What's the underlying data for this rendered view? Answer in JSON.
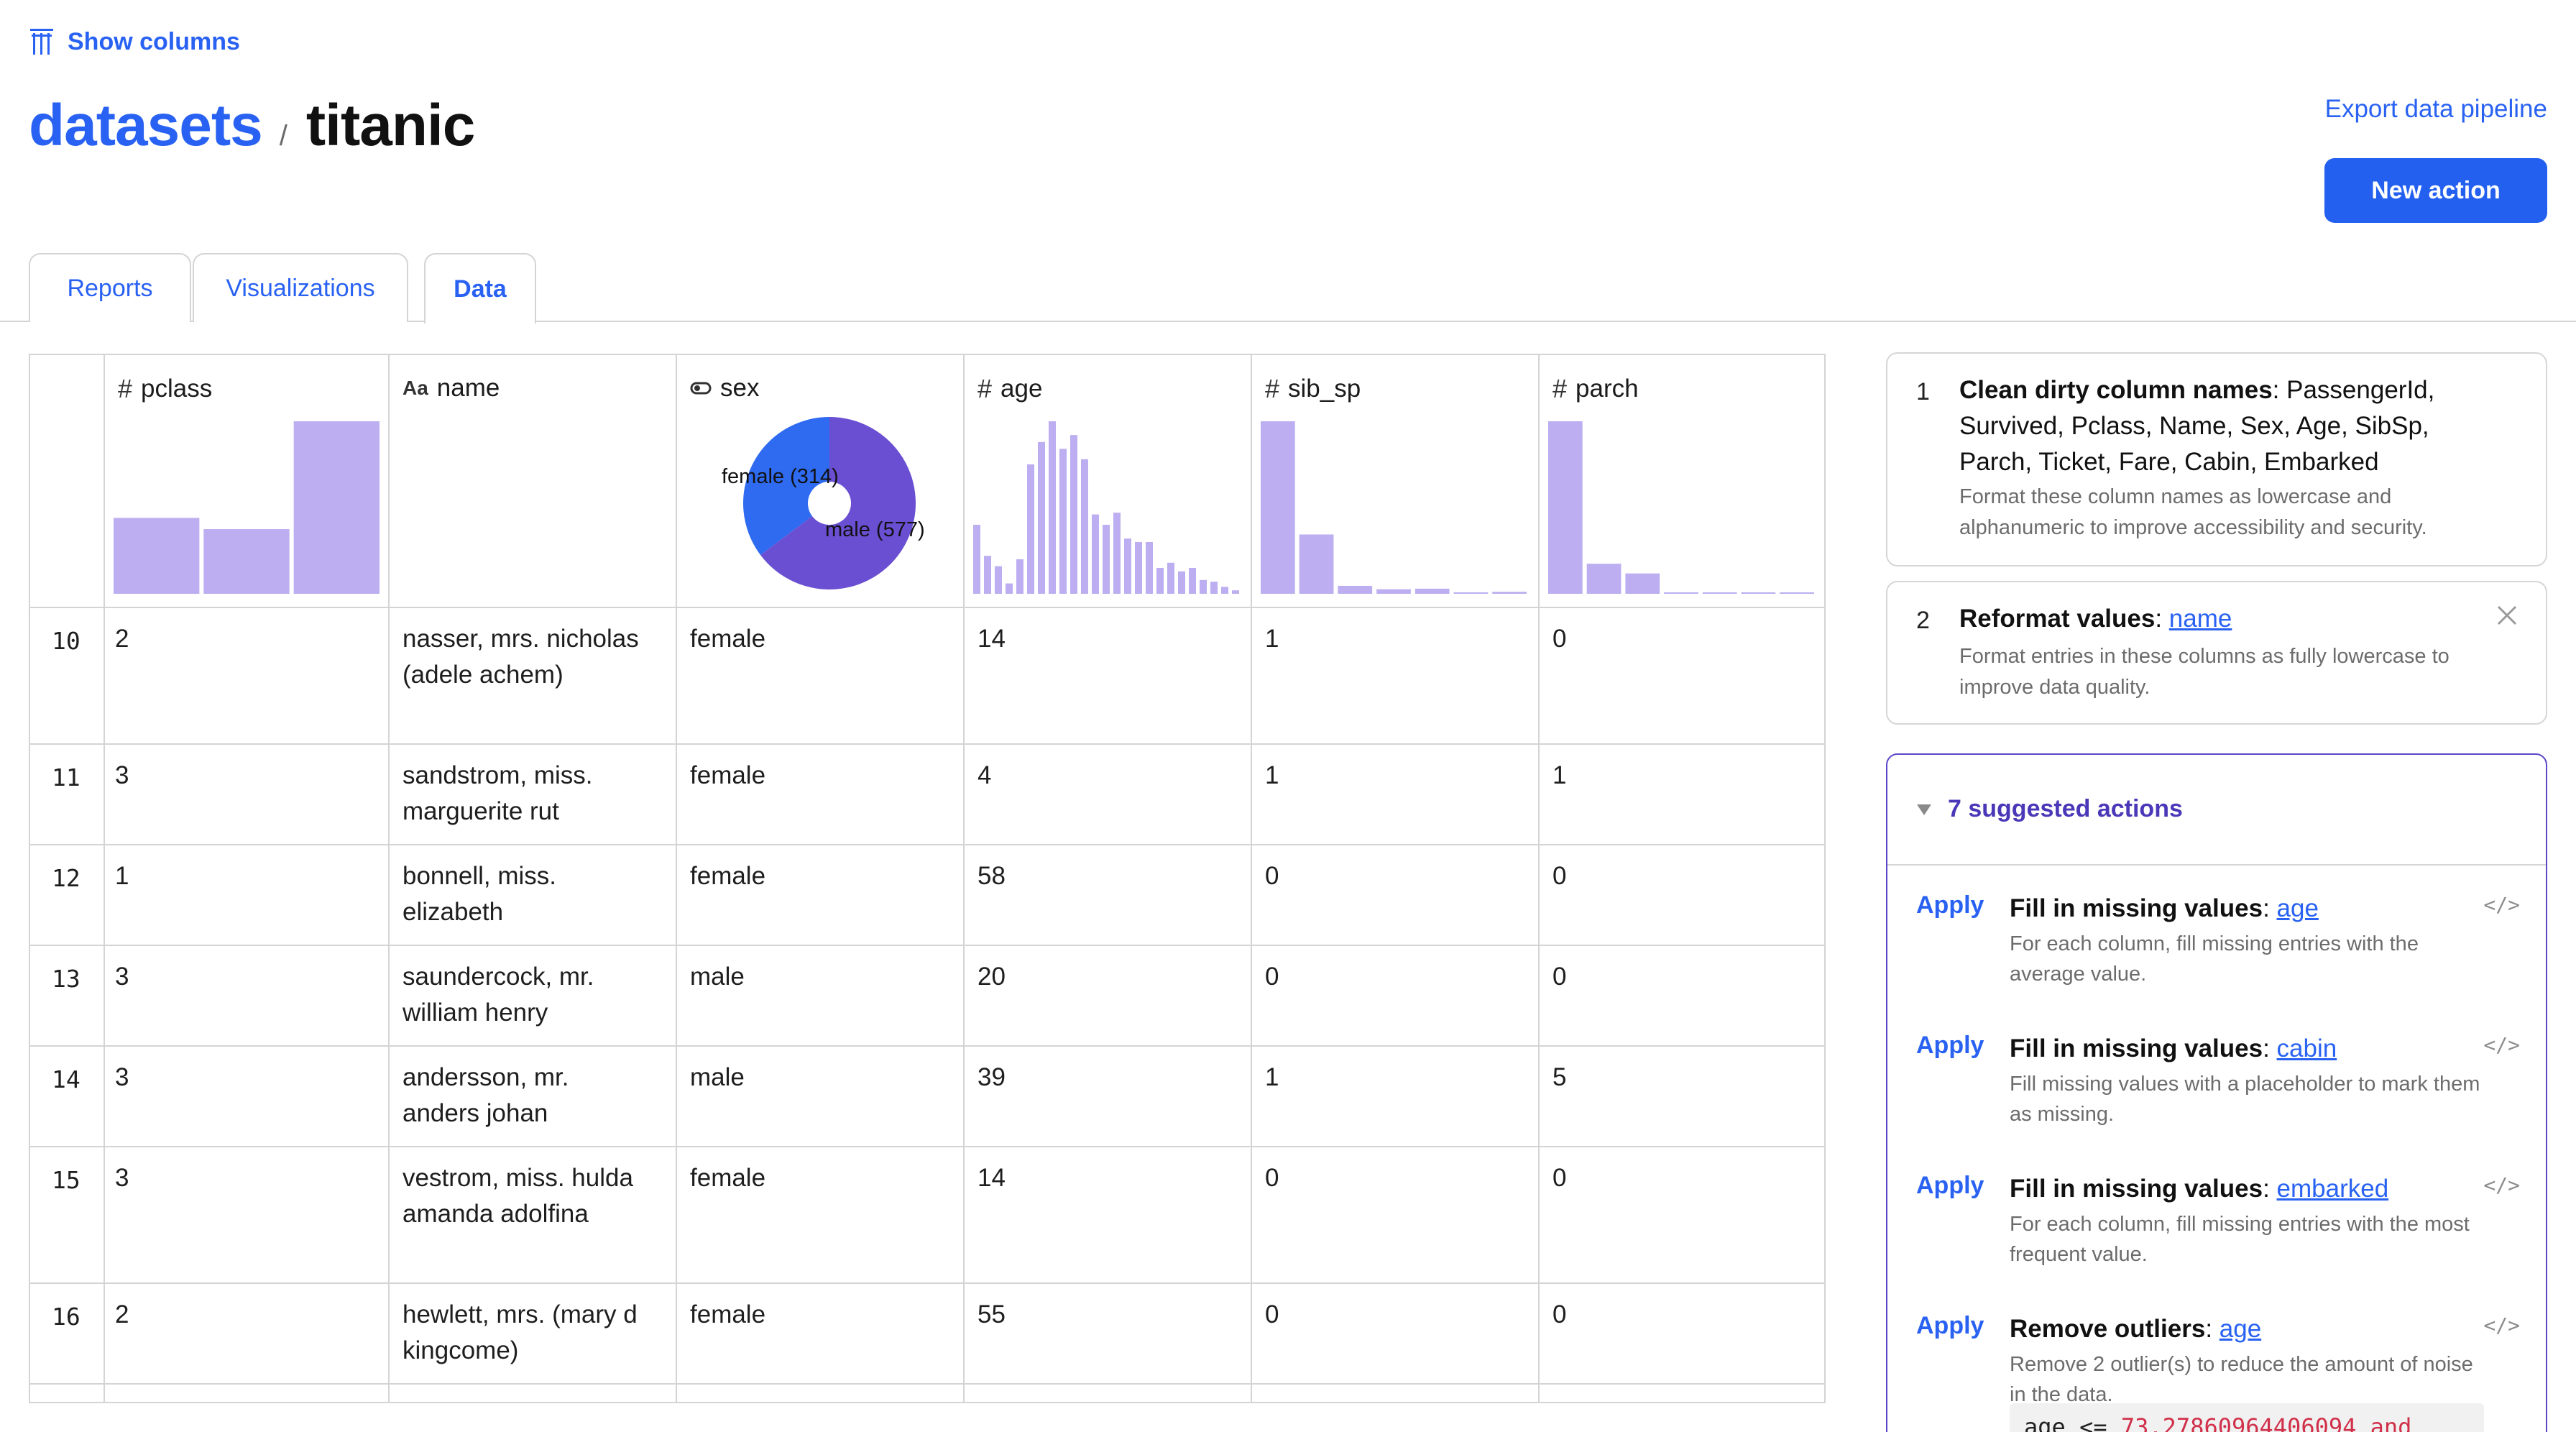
{
  "toolbar": {
    "show_columns_label": "Show columns"
  },
  "breadcrumb": {
    "root": "datasets",
    "separator": "/",
    "current": "titanic"
  },
  "header": {
    "export_label": "Export data pipeline",
    "new_action_label": "New action"
  },
  "tabs": [
    {
      "label": "Reports",
      "active": false
    },
    {
      "label": "Visualizations",
      "active": false
    },
    {
      "label": "Data",
      "active": true
    }
  ],
  "columns": [
    {
      "name": "pclass",
      "type_icon": "#"
    },
    {
      "name": "name",
      "type_icon": "Aa"
    },
    {
      "name": "sex",
      "type_icon": "toggle"
    },
    {
      "name": "age",
      "type_icon": "#"
    },
    {
      "name": "sib_sp",
      "type_icon": "#"
    },
    {
      "name": "parch",
      "type_icon": "#"
    }
  ],
  "column_summaries": {
    "pclass": {
      "type": "bar",
      "values": [
        216,
        184,
        491
      ]
    },
    "sex": {
      "type": "pie",
      "slices": [
        {
          "label": "female (314)",
          "value": 314,
          "color": "#2f6bf0"
        },
        {
          "label": "male (577)",
          "value": 577,
          "color": "#6a4fd2"
        }
      ]
    },
    "age": {
      "type": "bar",
      "values": [
        0.4,
        0.22,
        0.16,
        0.06,
        0.2,
        0.75,
        0.88,
        1.0,
        0.84,
        0.92,
        0.78,
        0.46,
        0.4,
        0.47,
        0.32,
        0.3,
        0.3,
        0.15,
        0.18,
        0.13,
        0.15,
        0.08,
        0.07,
        0.04,
        0.02
      ]
    },
    "sib_sp": {
      "type": "bar",
      "values": [
        608,
        209,
        28,
        16,
        18,
        5,
        7
      ]
    },
    "parch": {
      "type": "bar",
      "values": [
        678,
        118,
        80,
        5,
        4,
        5,
        1
      ]
    }
  },
  "rows": [
    {
      "index": "10",
      "pclass": "2",
      "name": "nasser, mrs. nicholas (adele achem)",
      "sex": "female",
      "age": "14",
      "sib_sp": "1",
      "parch": "0"
    },
    {
      "index": "11",
      "pclass": "3",
      "name": "sandstrom, miss. marguerite rut",
      "sex": "female",
      "age": "4",
      "sib_sp": "1",
      "parch": "1"
    },
    {
      "index": "12",
      "pclass": "1",
      "name": "bonnell, miss. elizabeth",
      "sex": "female",
      "age": "58",
      "sib_sp": "0",
      "parch": "0"
    },
    {
      "index": "13",
      "pclass": "3",
      "name": "saundercock, mr. william henry",
      "sex": "male",
      "age": "20",
      "sib_sp": "0",
      "parch": "0"
    },
    {
      "index": "14",
      "pclass": "3",
      "name": "andersson, mr. anders johan",
      "sex": "male",
      "age": "39",
      "sib_sp": "1",
      "parch": "5"
    },
    {
      "index": "15",
      "pclass": "3",
      "name": "vestrom, miss. hulda amanda adolfina",
      "sex": "female",
      "age": "14",
      "sib_sp": "0",
      "parch": "0"
    },
    {
      "index": "16",
      "pclass": "2",
      "name": "hewlett, mrs. (mary d kingcome)",
      "sex": "female",
      "age": "55",
      "sib_sp": "0",
      "parch": "0"
    }
  ],
  "actions": [
    {
      "number": "1",
      "title": "Clean dirty column names",
      "detail": "PassengerId, Survived, Pclass, Name, Sex, Age, SibSp, Parch, Ticket, Fare, Cabin, Embarked",
      "description": "Format these column names as lowercase and alphanumeric to improve accessibility and security."
    },
    {
      "number": "2",
      "title": "Reformat values",
      "link": "name",
      "description": "Format entries in these columns as fully lowercase to improve data quality."
    }
  ],
  "suggested": {
    "header": "7 suggested actions",
    "apply_label": "Apply",
    "code_icon": "</>",
    "items": [
      {
        "title": "Fill in missing values",
        "link": "age",
        "description": "For each column, fill missing entries with the average value."
      },
      {
        "title": "Fill in missing values",
        "link": "cabin",
        "description": "Fill missing values with a placeholder to mark them as missing."
      },
      {
        "title": "Fill in missing values",
        "link": "embarked",
        "description": "For each column, fill missing entries with the most frequent value."
      },
      {
        "title": "Remove outliers",
        "link": "age",
        "description": "Remove 2 outlier(s) to reduce the amount of noise in the data."
      }
    ],
    "code_prefix": "age <= ",
    "code_number": "73.27860964406094 and"
  }
}
